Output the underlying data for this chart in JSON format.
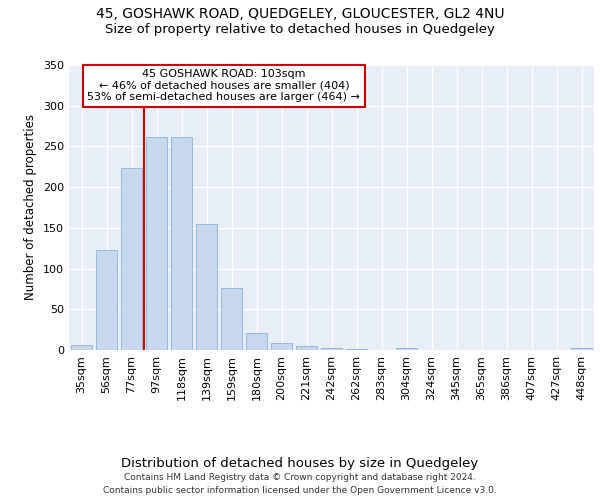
{
  "title1": "45, GOSHAWK ROAD, QUEDGELEY, GLOUCESTER, GL2 4NU",
  "title2": "Size of property relative to detached houses in Quedgeley",
  "xlabel": "Distribution of detached houses by size in Quedgeley",
  "ylabel": "Number of detached properties",
  "categories": [
    "35sqm",
    "56sqm",
    "77sqm",
    "97sqm",
    "118sqm",
    "139sqm",
    "159sqm",
    "180sqm",
    "200sqm",
    "221sqm",
    "242sqm",
    "262sqm",
    "283sqm",
    "304sqm",
    "324sqm",
    "345sqm",
    "365sqm",
    "386sqm",
    "407sqm",
    "427sqm",
    "448sqm"
  ],
  "values": [
    6,
    123,
    223,
    261,
    261,
    155,
    76,
    21,
    8,
    5,
    3,
    1,
    0,
    3,
    0,
    0,
    0,
    0,
    0,
    0,
    3
  ],
  "bar_color": "#c5d8ef",
  "bar_edge_color": "#8ab4d8",
  "bg_color": "#e8eef8",
  "grid_color": "#ffffff",
  "vline_x_index": 3,
  "vline_color": "#cc0000",
  "annotation_text": "45 GOSHAWK ROAD: 103sqm\n← 46% of detached houses are smaller (404)\n53% of semi-detached houses are larger (464) →",
  "annotation_box_color": "#ffffff",
  "annotation_box_edge": "#cc0000",
  "footer": "Contains HM Land Registry data © Crown copyright and database right 2024.\nContains public sector information licensed under the Open Government Licence v3.0.",
  "ylim": [
    0,
    350
  ],
  "title1_fontsize": 10,
  "title2_fontsize": 9.5,
  "xlabel_fontsize": 9.5,
  "ylabel_fontsize": 8.5,
  "tick_fontsize": 8,
  "footer_fontsize": 6.5,
  "annotation_fontsize": 8
}
